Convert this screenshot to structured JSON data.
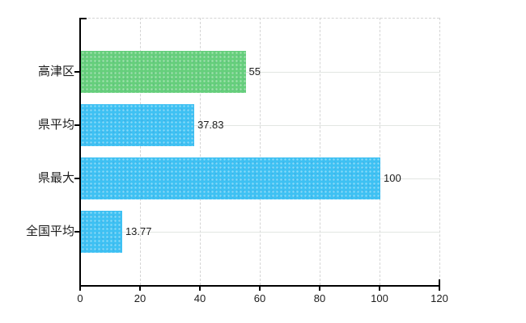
{
  "chart_data": {
    "type": "bar",
    "orientation": "horizontal",
    "title": "",
    "xlabel": "",
    "ylabel": "",
    "categories": [
      "高津区",
      "県平均",
      "県最大",
      "全国平均"
    ],
    "values": [
      55,
      37.83,
      100,
      13.77
    ],
    "value_labels": [
      "55",
      "37.83",
      "100",
      "13.77"
    ],
    "bar_colors": [
      "#66cf7c",
      "#3ec1f3",
      "#3ec1f3",
      "#3ec1f3"
    ],
    "xlim": [
      0,
      120
    ],
    "x_ticks": [
      0,
      20,
      40,
      60,
      80,
      100,
      120
    ],
    "grid": true,
    "legend": null
  },
  "colors": {
    "green_bar": "#66cf7c",
    "blue_bar": "#3ec1f3",
    "axis": "#000000",
    "grid_horizontal": "#e2e6e2",
    "grid_vertical_dashed": "#d4d4d4",
    "text": "#1c1c1c",
    "background": "#ffffff"
  }
}
